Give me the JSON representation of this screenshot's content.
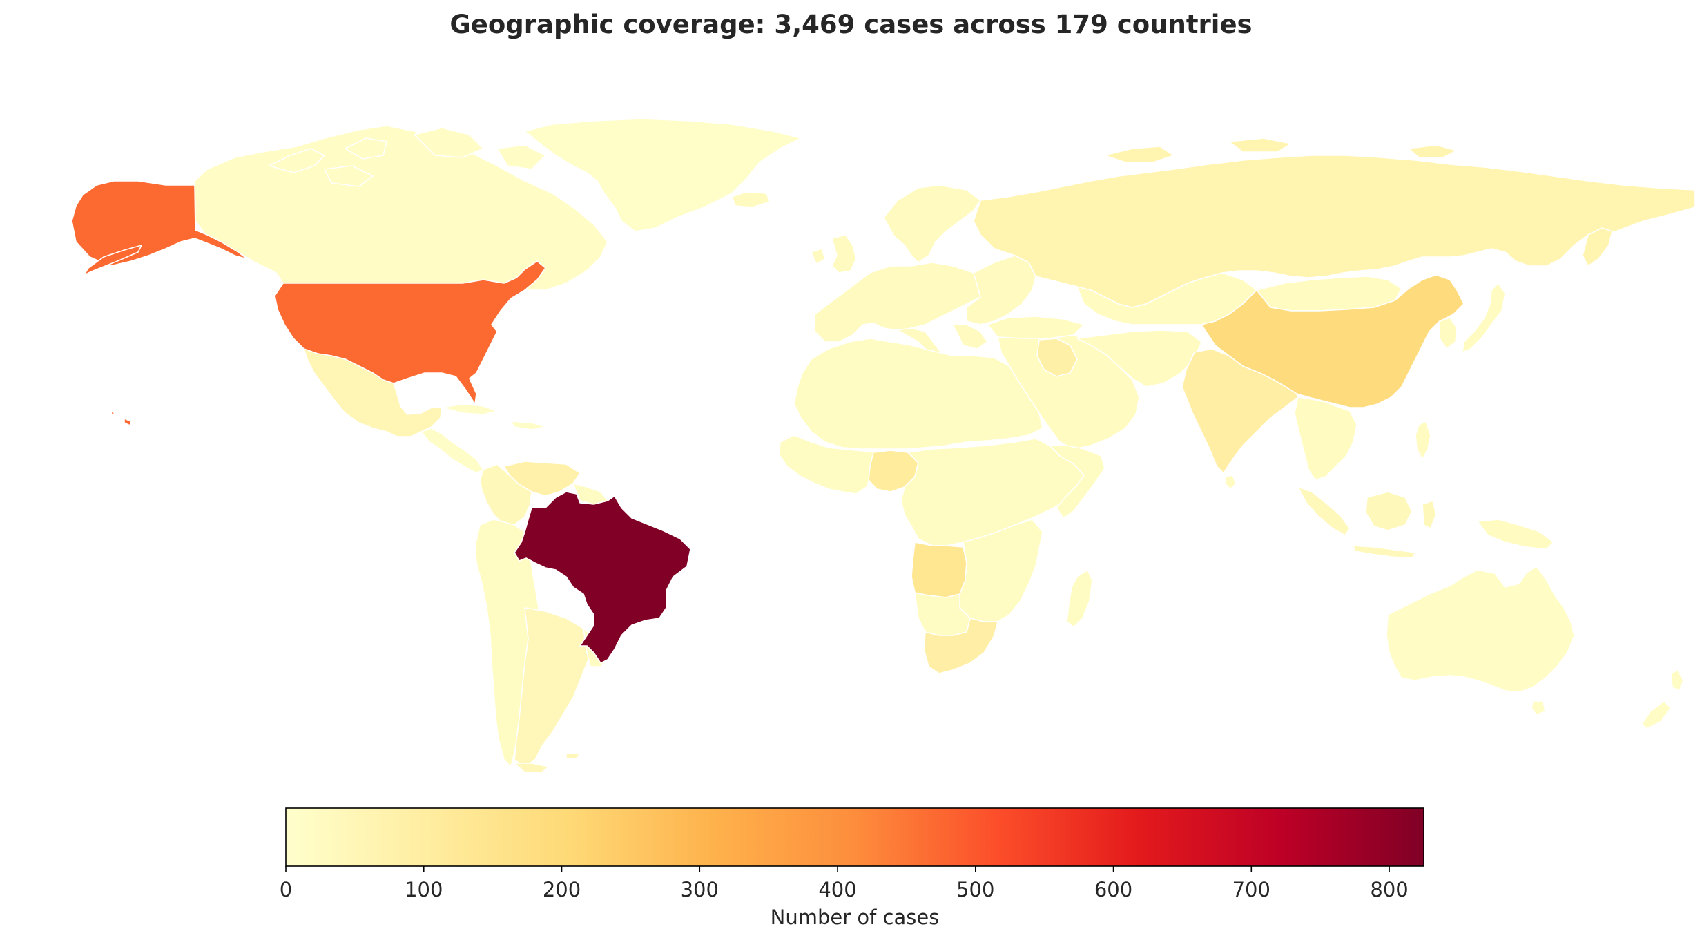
{
  "title": "Geographic coverage: 3,469 cases across 179 countries",
  "colorbar": {
    "label": "Number of cases",
    "min": 0,
    "max": 825,
    "ticks": [
      0,
      100,
      200,
      300,
      400,
      500,
      600,
      700,
      800
    ],
    "tick_labels": [
      "0",
      "100",
      "200",
      "300",
      "400",
      "500",
      "600",
      "700",
      "800"
    ],
    "colormap": "YlOrRd",
    "stops": [
      "#ffffcc",
      "#ffeda0",
      "#fed976",
      "#feb24c",
      "#fd8d3c",
      "#fc4e2a",
      "#e31a1c",
      "#bd0026",
      "#800026"
    ]
  },
  "chart_data": {
    "type": "choropleth",
    "title": "Geographic coverage: 3,469 cases across 179 countries",
    "legend": "bottom colorbar",
    "value_label": "Number of cases",
    "range": [
      0,
      825
    ],
    "regions": [
      {
        "name": "Brazil",
        "value": 825
      },
      {
        "name": "United States",
        "value": 470
      },
      {
        "name": "China",
        "value": 190
      },
      {
        "name": "Angola",
        "value": 140
      },
      {
        "name": "Nigeria",
        "value": 110
      },
      {
        "name": "India",
        "value": 95
      },
      {
        "name": "South Africa",
        "value": 90
      },
      {
        "name": "Iraq",
        "value": 85
      },
      {
        "name": "Venezuela",
        "value": 80
      },
      {
        "name": "Russia",
        "value": 65
      },
      {
        "name": "Mexico",
        "value": 55
      },
      {
        "name": "Argentina",
        "value": 45
      },
      {
        "name": "Indonesia",
        "value": 40
      },
      {
        "name": "Colombia",
        "value": 40
      },
      {
        "name": "Canada",
        "value": 15
      },
      {
        "name": "Greenland",
        "value": 10
      },
      {
        "name": "Australia",
        "value": 15
      },
      {
        "name": "Europe (other)",
        "value": 30
      },
      {
        "name": "Africa (other)",
        "value": 20
      },
      {
        "name": "Asia (other)",
        "value": 25
      },
      {
        "name": "South America (other)",
        "value": 20
      }
    ]
  }
}
